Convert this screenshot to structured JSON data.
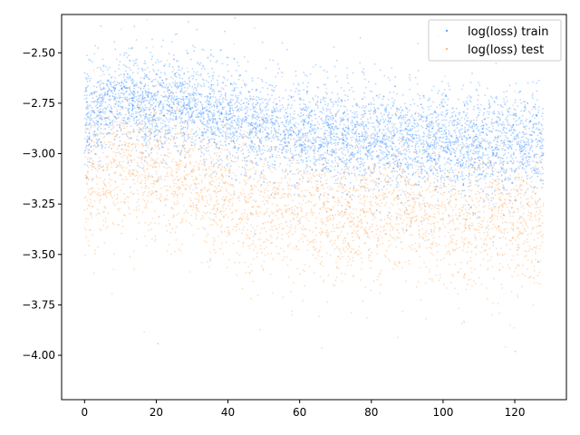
{
  "chart_data": {
    "type": "scatter",
    "title": "",
    "xlabel": "",
    "ylabel": "",
    "xlim": [
      -6.4,
      134.4
    ],
    "ylim": [
      -4.22,
      -2.31
    ],
    "xticks": [
      0,
      20,
      40,
      60,
      80,
      100,
      120
    ],
    "yticks": [
      -4.0,
      -3.75,
      -3.5,
      -3.25,
      -3.0,
      -2.75,
      -2.5
    ],
    "xtick_labels": [
      "0",
      "20",
      "40",
      "60",
      "80",
      "100",
      "120"
    ],
    "ytick_labels": [
      "−4.00",
      "−3.75",
      "−3.50",
      "−3.25",
      "−3.00",
      "−2.75",
      "−2.50"
    ],
    "grid": false,
    "legend_position": "top-right",
    "series": [
      {
        "name": "log(loss) train",
        "color": "#0070ff",
        "x_range": [
          0,
          128
        ],
        "trend": [
          {
            "x": 0,
            "y": -2.85
          },
          {
            "x": 8,
            "y": -2.72
          },
          {
            "x": 14,
            "y": -2.74
          },
          {
            "x": 20,
            "y": -2.78
          },
          {
            "x": 26,
            "y": -2.73
          },
          {
            "x": 34,
            "y": -2.8
          },
          {
            "x": 50,
            "y": -2.86
          },
          {
            "x": 70,
            "y": -2.91
          },
          {
            "x": 90,
            "y": -2.93
          },
          {
            "x": 110,
            "y": -2.95
          },
          {
            "x": 128,
            "y": -2.94
          }
        ],
        "spread": 0.12
      },
      {
        "name": "log(loss) test",
        "color": "#ff8a1e",
        "x_range": [
          0,
          128
        ],
        "trend": [
          {
            "x": 0,
            "y": -3.15
          },
          {
            "x": 10,
            "y": -3.05
          },
          {
            "x": 16,
            "y": -3.06
          },
          {
            "x": 26,
            "y": -3.08
          },
          {
            "x": 40,
            "y": -3.22
          },
          {
            "x": 60,
            "y": -3.27
          },
          {
            "x": 80,
            "y": -3.3
          },
          {
            "x": 100,
            "y": -3.3
          },
          {
            "x": 128,
            "y": -3.32
          }
        ],
        "spread": 0.17
      }
    ]
  }
}
